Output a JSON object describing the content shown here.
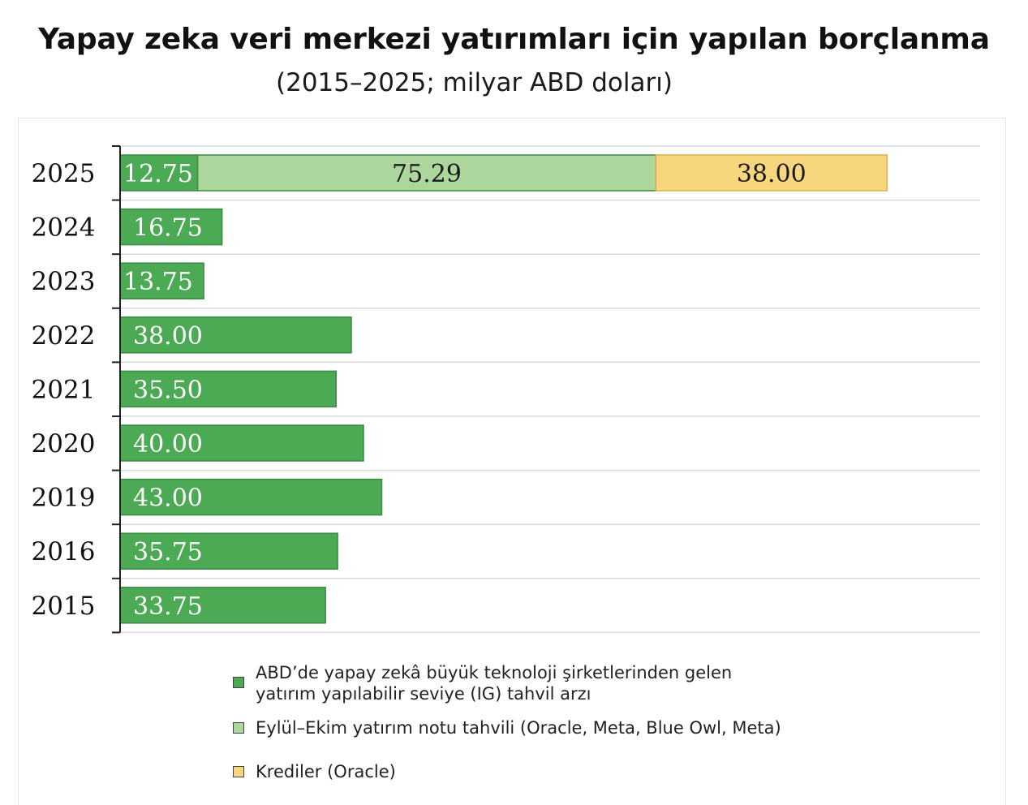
{
  "header": {
    "title": "Yapay zeka veri merkezi yatırımları için yapılan borçlanma",
    "subtitle": "(2015–2025; milyar ABD doları)"
  },
  "colors": {
    "ig": "#4caa54",
    "sept_oct": "#add69c",
    "loans": "#f8d67e",
    "ig_text": "#ffffff",
    "other_text": "#1a1a1a",
    "axis": "#222222",
    "grid": "#d8d8d8"
  },
  "legend": [
    {
      "key": "ig",
      "line1": "ABD’de yapay zekâ büyük teknoloji şirketlerinden gelen",
      "line2": "yatırım yapılabilir seviye (IG) tahvil arzı"
    },
    {
      "key": "sept_oct",
      "line1": "Eylül–Ekim yatırım notu tahvili (Oracle, Meta, Blue Owl, Meta)",
      "line2": ""
    },
    {
      "key": "loans",
      "line1": "Krediler (Oracle)",
      "line2": ""
    }
  ],
  "chart_data": {
    "type": "bar",
    "orientation": "horizontal",
    "stacked": true,
    "categories": [
      "2025",
      "2024",
      "2023",
      "2022",
      "2021",
      "2020",
      "2019",
      "2016",
      "2015"
    ],
    "series": [
      {
        "name": "ABD’de yapay zekâ büyük teknoloji şirketlerinden gelen yatırım yapılabilir seviye (IG) tahvil arzı",
        "key": "ig",
        "values": [
          12.75,
          16.75,
          13.75,
          38.0,
          35.5,
          40.0,
          43.0,
          35.75,
          33.75
        ],
        "labels": [
          "12.75",
          "16.75",
          "13.75",
          "38.00",
          "35.50",
          "40.00",
          "43.00",
          "35.75",
          "33.75"
        ]
      },
      {
        "name": "Eylül–Ekim yatırım notu tahvili (Oracle, Meta, Blue Owl, Meta)",
        "key": "sept_oct",
        "values": [
          75.29,
          null,
          null,
          null,
          null,
          null,
          null,
          null,
          null
        ],
        "labels": [
          "75.29",
          "",
          "",
          "",
          "",
          "",
          "",
          "",
          ""
        ]
      },
      {
        "name": "Krediler (Oracle)",
        "key": "loans",
        "values": [
          38.0,
          null,
          null,
          null,
          null,
          null,
          null,
          null,
          null
        ],
        "labels": [
          "38.00",
          "",
          "",
          "",
          "",
          "",
          "",
          "",
          ""
        ]
      }
    ],
    "grid": true,
    "legend_position": "bottom"
  }
}
